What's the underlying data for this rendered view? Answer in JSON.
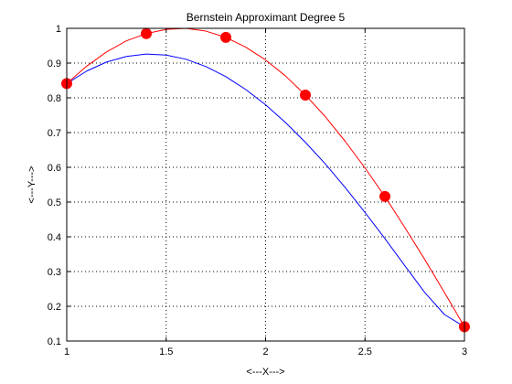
{
  "chart_data": {
    "type": "line",
    "title": "Bernstein Approximant Degree 5",
    "xlabel": "<---X--->",
    "ylabel": "<---Y--->",
    "xlim": [
      1,
      3
    ],
    "ylim": [
      0.1,
      1
    ],
    "xticks": [
      1,
      1.5,
      2,
      2.5,
      3
    ],
    "xtick_labels": [
      "1",
      "1.5",
      "2",
      "2.5",
      "3"
    ],
    "yticks": [
      0.1,
      0.2,
      0.3,
      0.4,
      0.5,
      0.6,
      0.7,
      0.8,
      0.9,
      1
    ],
    "ytick_labels": [
      "0.1",
      "0.2",
      "0.3",
      "0.4",
      "0.5",
      "0.6",
      "0.7",
      "0.8",
      "0.9",
      "1"
    ],
    "grid": true,
    "grid_style": "dotted",
    "series": [
      {
        "color": "#ff0000",
        "style": "line",
        "x": [
          1.0,
          1.1,
          1.2,
          1.3,
          1.4,
          1.5,
          1.6,
          1.7,
          1.8,
          1.9,
          2.0,
          2.1,
          2.2,
          2.3,
          2.4,
          2.5,
          2.6,
          2.7,
          2.8,
          2.9,
          3.0
        ],
        "y": [
          0.841,
          0.891,
          0.932,
          0.964,
          0.985,
          0.997,
          1.0,
          0.992,
          0.974,
          0.946,
          0.909,
          0.863,
          0.808,
          0.746,
          0.675,
          0.598,
          0.516,
          0.427,
          0.335,
          0.239,
          0.141
        ]
      },
      {
        "color": "#0000ff",
        "style": "line",
        "x": [
          1.0,
          1.1,
          1.2,
          1.3,
          1.4,
          1.5,
          1.6,
          1.7,
          1.8,
          1.9,
          2.0,
          2.1,
          2.2,
          2.3,
          2.4,
          2.5,
          2.6,
          2.7,
          2.8,
          2.9,
          3.0
        ],
        "y": [
          0.841,
          0.877,
          0.903,
          0.919,
          0.926,
          0.923,
          0.911,
          0.89,
          0.861,
          0.824,
          0.78,
          0.729,
          0.672,
          0.61,
          0.542,
          0.47,
          0.395,
          0.317,
          0.24,
          0.176,
          0.141
        ]
      },
      {
        "color": "#ff0000",
        "style": "markers",
        "x": [
          1.0,
          1.4,
          1.8,
          2.2,
          2.6,
          3.0
        ],
        "y": [
          0.841,
          0.985,
          0.974,
          0.808,
          0.516,
          0.141
        ]
      }
    ]
  }
}
